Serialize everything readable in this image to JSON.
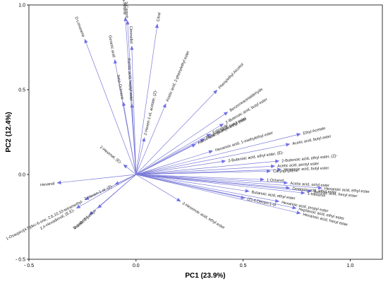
{
  "chart_data": {
    "type": "biplot",
    "xlabel": "PC1 (23.9%)",
    "ylabel": "PC2 (12.4%)",
    "xlim": [
      -0.5,
      1.15
    ],
    "ylim": [
      -0.5,
      1.0
    ],
    "x_ticks": [
      {
        "value": -0.5,
        "label": "- 0.5"
      },
      {
        "value": 0.0,
        "label": "0.0"
      },
      {
        "value": 0.5,
        "label": "0.5"
      },
      {
        "value": 1.0,
        "label": "1.0"
      }
    ],
    "y_ticks": [
      {
        "value": -0.5,
        "label": "- 0.5"
      },
      {
        "value": 0.0,
        "label": "0.0"
      },
      {
        "value": 0.5,
        "label": "0.5"
      },
      {
        "value": 1.0,
        "label": "1.0"
      }
    ],
    "grid": false,
    "vector_color": "#7b7bd9",
    "vectors": [
      {
        "name": "beta-Pinene",
        "x": -0.05,
        "y": 0.93
      },
      {
        "name": "3-Carene",
        "x": -0.04,
        "y": 0.91
      },
      {
        "name": "Citral",
        "x": 0.1,
        "y": 0.89
      },
      {
        "name": "D-Limonene",
        "x": -0.24,
        "y": 0.8
      },
      {
        "name": "Citronellol",
        "x": -0.02,
        "y": 0.76
      },
      {
        "name": "Geranic acid",
        "x": -0.1,
        "y": 0.68
      },
      {
        "name": "Acetic acid, 2-phenylethyl ester",
        "x": 0.14,
        "y": 0.42
      },
      {
        "name": "beta-Ocimene",
        "x": -0.06,
        "y": 0.43
      },
      {
        "name": "Phenylethyl Alcohol",
        "x": 0.38,
        "y": 0.5
      },
      {
        "name": "Formic acid, heptyl ester",
        "x": -0.02,
        "y": 0.42
      },
      {
        "name": "2-Hexen-1-ol, acetate, (Z)-",
        "x": 0.04,
        "y": 0.22
      },
      {
        "name": "Benzeneacetaldehyde",
        "x": 0.43,
        "y": 0.37
      },
      {
        "name": "2-Butenoic acid, butyl ester",
        "x": 0.41,
        "y": 0.3
      },
      {
        "name": "Estragole",
        "x": 0.35,
        "y": 0.24
      },
      {
        "name": "Ethyl Acetate",
        "x": 0.77,
        "y": 0.24
      },
      {
        "name": "Butanoic acid, butyl ester",
        "x": 0.32,
        "y": 0.21
      },
      {
        "name": "Acetic acid, phenylmethyl ester",
        "x": 0.28,
        "y": 0.18
      },
      {
        "name": "Acetic acid, butyl ester",
        "x": 0.72,
        "y": 0.18
      },
      {
        "name": "Hexanoic acid, 1-methylethyl ester",
        "x": 0.36,
        "y": 0.14
      },
      {
        "name": "2-Butenoic acid, ethyl ester, (E)-",
        "x": 0.42,
        "y": 0.08
      },
      {
        "name": "2-Butenoic acid, ethyl ester, (Z)-",
        "x": 0.67,
        "y": 0.08
      },
      {
        "name": "Acetic acid, pentyl ester",
        "x": 0.65,
        "y": 0.05
      },
      {
        "name": "2-Hexenal, (E)-",
        "x": -0.06,
        "y": 0.06
      },
      {
        "name": "Hexanoic acid, butyl ester",
        "x": 0.68,
        "y": 0.03
      },
      {
        "name": "Caryophyllene",
        "x": 0.63,
        "y": 0.02
      },
      {
        "name": "1-Octanol",
        "x": 0.6,
        "y": -0.03
      },
      {
        "name": "Acetic acid, octyl ester",
        "x": 0.71,
        "y": -0.05
      },
      {
        "name": "Octanoic acid, ethyl ester",
        "x": 0.72,
        "y": -0.08
      },
      {
        "name": "Hexanoic acid, ethyl ester",
        "x": 0.87,
        "y": -0.08
      },
      {
        "name": "Butanoic acid, ethyl ester",
        "x": 0.53,
        "y": -0.1
      },
      {
        "name": "Benzoic acid, hexyl ester",
        "x": 0.82,
        "y": -0.1
      },
      {
        "name": "1-Hexanol",
        "x": 0.79,
        "y": -0.11
      },
      {
        "name": "(Z)-4-Decen-1-ol",
        "x": 0.51,
        "y": -0.14
      },
      {
        "name": "Hexanoic acid, propyl ester",
        "x": 0.67,
        "y": -0.16
      },
      {
        "name": "Heptanoic acid, ethyl ester",
        "x": 0.75,
        "y": -0.2
      },
      {
        "name": "Hexanoic acid, hexyl ester",
        "x": 0.77,
        "y": -0.23
      },
      {
        "name": "2-Hexenoic acid, ethyl ester",
        "x": 0.21,
        "y": -0.16
      },
      {
        "name": "Hexanal",
        "x": -0.37,
        "y": -0.05
      },
      {
        "name": "2-Hexen-1-ol, (Z)-",
        "x": -0.1,
        "y": -0.06
      },
      {
        "name": "1-Oxaspiro[4.5]dec-6-ene, 2,6,10,10-tetramethyl-",
        "x": -0.24,
        "y": -0.15
      },
      {
        "name": "2,4-Hexadienal, (E,E)-",
        "x": -0.28,
        "y": -0.2
      },
      {
        "name": "Furan, 2-pentyl-",
        "x": -0.18,
        "y": -0.2
      },
      {
        "name": "Eucalyptol",
        "x": -0.22,
        "y": -0.24
      }
    ]
  }
}
